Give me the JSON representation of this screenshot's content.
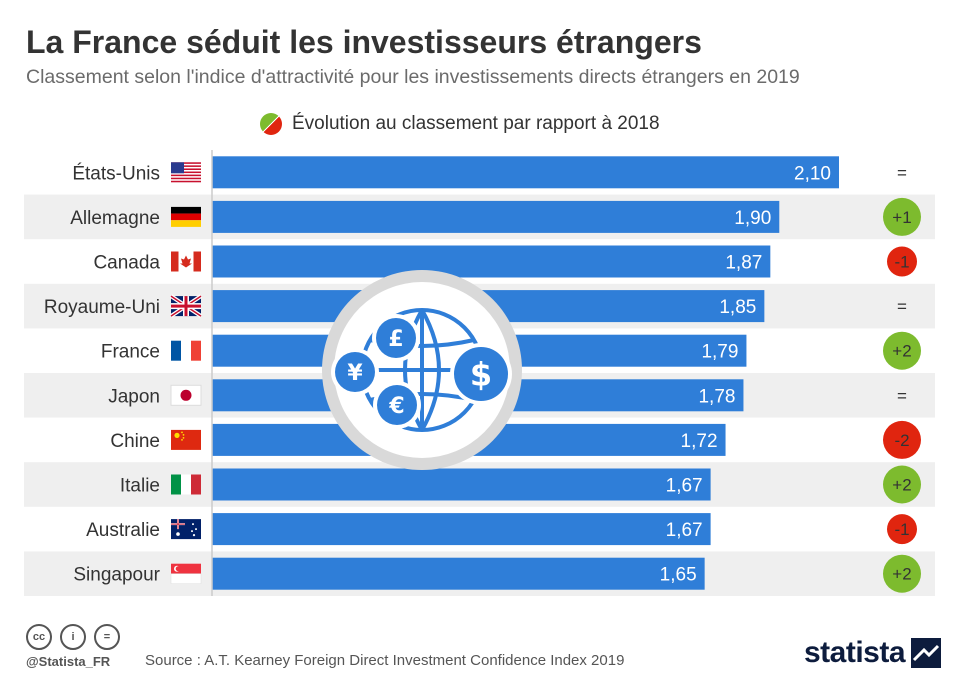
{
  "header": {
    "title": "La France séduit les investisseurs étrangers",
    "subtitle": "Classement selon l'indice d'attractivité pour les investissements directs étrangers en 2019"
  },
  "legend": {
    "label": "Évolution au classement par rapport à 2018",
    "icon": "green-red-circle-icon"
  },
  "colors": {
    "bar": "#2f7ed8",
    "up": "#7dbb2e",
    "down": "#e0250f",
    "stripe": "#efefef",
    "emblem_ring": "#d9d9d9",
    "emblem_icon": "#2f7ed8"
  },
  "chart_data": {
    "type": "bar",
    "orientation": "horizontal",
    "categories": [
      "États-Unis",
      "Allemagne",
      "Canada",
      "Royaume-Uni",
      "France",
      "Japon",
      "Chine",
      "Italie",
      "Australie",
      "Singapour"
    ],
    "values": [
      2.1,
      1.9,
      1.87,
      1.85,
      1.79,
      1.78,
      1.72,
      1.67,
      1.67,
      1.65
    ],
    "value_labels": [
      "2,10",
      "1,90",
      "1,87",
      "1,85",
      "1,79",
      "1,78",
      "1,72",
      "1,67",
      "1,67",
      "1,65"
    ],
    "flags": [
      "us-flag-icon",
      "germany-flag-icon",
      "canada-flag-icon",
      "uk-flag-icon",
      "france-flag-icon",
      "japan-flag-icon",
      "china-flag-icon",
      "italy-flag-icon",
      "australia-flag-icon",
      "singapore-flag-icon"
    ],
    "ranking_change": [
      {
        "label": "=",
        "trend": "same"
      },
      {
        "label": "+1",
        "trend": "up"
      },
      {
        "label": "-1",
        "trend": "down"
      },
      {
        "label": "=",
        "trend": "same"
      },
      {
        "label": "+2",
        "trend": "up"
      },
      {
        "label": "=",
        "trend": "same"
      },
      {
        "label": "-2",
        "trend": "down"
      },
      {
        "label": "+2",
        "trend": "up"
      },
      {
        "label": "-1",
        "trend": "down"
      },
      {
        "label": "+2",
        "trend": "up"
      }
    ],
    "xlim": [
      0,
      2.1
    ],
    "grid": false,
    "emblem": {
      "icon": "globe-currency-icon",
      "symbols": [
        "£",
        "¥",
        "$",
        "€"
      ]
    }
  },
  "footer": {
    "license_icons": [
      "creative-commons-icon",
      "attribution-icon",
      "no-derivatives-icon"
    ],
    "license_glyphs": [
      "cc",
      "i",
      "="
    ],
    "handle": "@Statista_FR",
    "source": "Source : A.T. Kearney Foreign Direct Investment Confidence Index 2019",
    "brand": "statista",
    "brand_icon": "statista-logo-icon"
  }
}
